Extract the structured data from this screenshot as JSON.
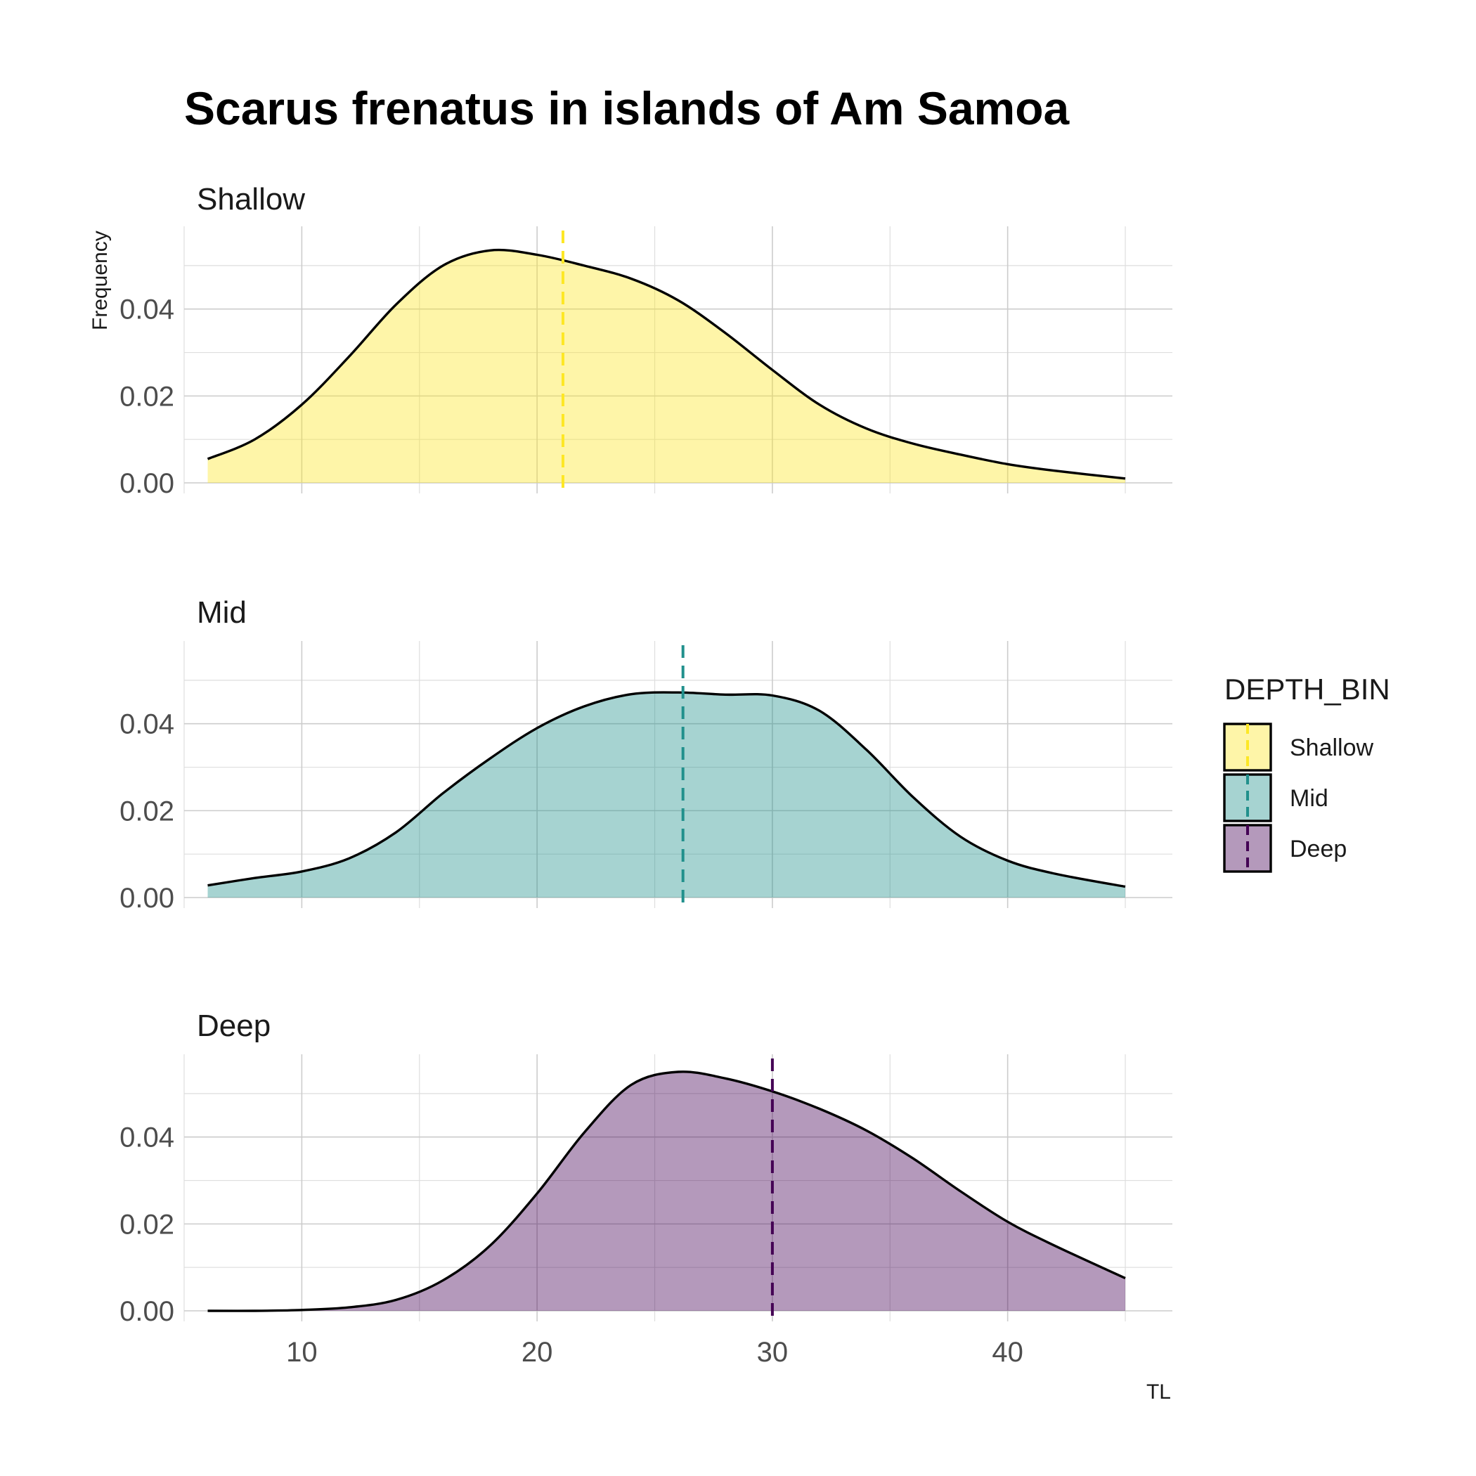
{
  "chart_data": {
    "type": "area",
    "title": "Scarus frenatus in islands of Am Samoa",
    "xlabel": "TL",
    "ylabel": "Frequency",
    "xlim": [
      5,
      47
    ],
    "ylim": [
      0,
      0.057
    ],
    "x_ticks": [
      10,
      20,
      30,
      40
    ],
    "x_tick_labels": [
      "10",
      "20",
      "30",
      "40"
    ],
    "y_ticks": [
      0,
      0.02,
      0.04
    ],
    "y_tick_labels": [
      "0.00",
      "0.02",
      "0.04"
    ],
    "grid": true,
    "legend": {
      "title": "DEPTH_BIN",
      "position": "right",
      "entries": [
        "Shallow",
        "Mid",
        "Deep"
      ]
    },
    "series": [
      {
        "name": "Shallow",
        "color": "#FDE725",
        "mean_line_x": 21.1,
        "x": [
          6,
          8,
          10,
          12,
          14,
          16,
          18,
          20,
          22,
          24,
          26,
          28,
          30,
          32,
          34,
          36,
          38,
          40,
          42,
          45
        ],
        "y": [
          0.0055,
          0.01,
          0.018,
          0.029,
          0.041,
          0.05,
          0.0535,
          0.0525,
          0.05,
          0.047,
          0.042,
          0.0345,
          0.026,
          0.018,
          0.0125,
          0.009,
          0.0065,
          0.0043,
          0.0028,
          0.001
        ]
      },
      {
        "name": "Mid",
        "color": "#21908C",
        "mean_line_x": 26.2,
        "x": [
          6,
          8,
          10,
          12,
          14,
          16,
          18,
          20,
          22,
          24,
          26,
          28,
          30,
          32,
          34,
          36,
          38,
          40,
          42,
          45
        ],
        "y": [
          0.0028,
          0.0045,
          0.006,
          0.009,
          0.015,
          0.024,
          0.032,
          0.039,
          0.044,
          0.0468,
          0.0472,
          0.0467,
          0.0465,
          0.043,
          0.034,
          0.023,
          0.014,
          0.0085,
          0.0055,
          0.0025
        ]
      },
      {
        "name": "Deep",
        "color": "#440154",
        "mean_line_x": 30.0,
        "x": [
          6,
          8,
          10,
          12,
          14,
          16,
          18,
          20,
          22,
          24,
          26,
          28,
          30,
          32,
          34,
          36,
          38,
          40,
          42,
          45
        ],
        "y": [
          0.0,
          0.0,
          0.0002,
          0.0008,
          0.0025,
          0.007,
          0.015,
          0.027,
          0.041,
          0.052,
          0.055,
          0.0535,
          0.0505,
          0.0465,
          0.0415,
          0.035,
          0.0275,
          0.0205,
          0.015,
          0.0075
        ]
      }
    ]
  }
}
